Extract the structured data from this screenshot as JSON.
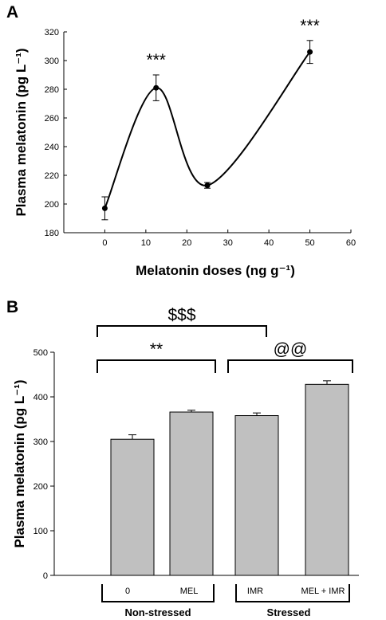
{
  "figure": {
    "panel_a_letter": "A",
    "panel_b_letter": "B"
  },
  "chart_data": [
    {
      "type": "line",
      "panel": "A",
      "xlabel": "Melatonin doses (ng g⁻¹)",
      "ylabel": "Plasma melatonin (pg L⁻¹)",
      "xlim": [
        -10,
        60
      ],
      "ylim": [
        180,
        320
      ],
      "xticks": [
        0,
        10,
        20,
        30,
        40,
        50,
        60
      ],
      "yticks": [
        180,
        200,
        220,
        240,
        260,
        280,
        300,
        320
      ],
      "x": [
        0,
        12.5,
        25,
        50
      ],
      "y": [
        197,
        281,
        213,
        306
      ],
      "err": [
        8,
        9,
        2,
        8
      ],
      "annotations": [
        {
          "x": 12.5,
          "text": "***"
        },
        {
          "x": 50,
          "text": "***"
        }
      ],
      "smooth": true,
      "grid": false
    },
    {
      "type": "bar",
      "panel": "B",
      "ylabel": "Plasma melatonin (pg L⁻¹)",
      "ylim": [
        0,
        500
      ],
      "yticks": [
        0,
        100,
        200,
        300,
        400,
        500
      ],
      "categories": [
        "0",
        "MEL",
        "IMR",
        "MEL + IMR"
      ],
      "values": [
        305,
        366,
        358,
        428
      ],
      "err": [
        10,
        4,
        6,
        8
      ],
      "bar_color": "#c0c0c0",
      "groups": [
        {
          "label": "Non-stressed",
          "members": [
            0,
            1
          ]
        },
        {
          "label": "Stressed",
          "members": [
            2,
            3
          ]
        }
      ],
      "brackets": [
        {
          "from": 0,
          "to": 1,
          "text": "**",
          "level": 1
        },
        {
          "from": 2,
          "to": 3,
          "text": "@@",
          "level": 1
        },
        {
          "from": 0,
          "to": 2,
          "text": "$$$",
          "level": 2
        }
      ],
      "grid": false
    }
  ]
}
